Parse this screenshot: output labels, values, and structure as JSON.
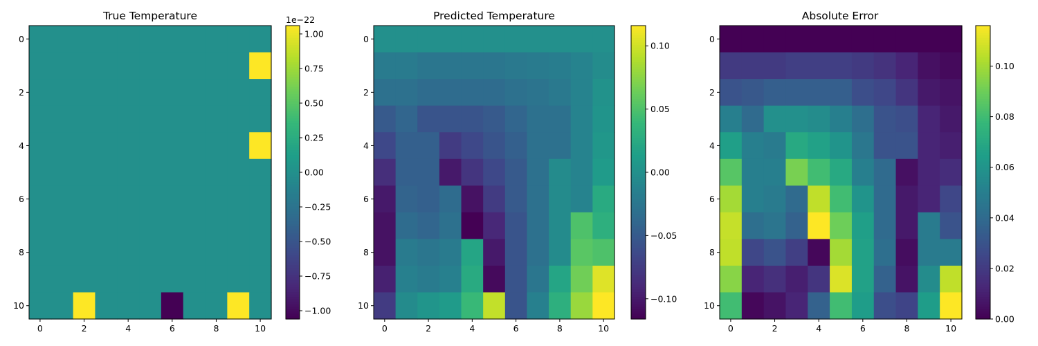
{
  "chart_data": [
    {
      "type": "heatmap",
      "title": "True Temperature",
      "colormap": "viridis",
      "x_ticks": [
        "0",
        "2",
        "4",
        "6",
        "8",
        "10"
      ],
      "y_ticks": [
        "0",
        "2",
        "4",
        "6",
        "8",
        "10"
      ],
      "colorbar": {
        "min": -1.06,
        "max": 1.06,
        "ticks": [
          "−1.00",
          "−0.75",
          "−0.50",
          "−0.25",
          "0.00",
          "0.25",
          "0.50",
          "0.75",
          "1.00"
        ],
        "tick_values": [
          -1.0,
          -0.75,
          -0.5,
          -0.25,
          0.0,
          0.25,
          0.5,
          0.75,
          1.0
        ],
        "offset_text": "1e−22"
      },
      "values": [
        [
          0,
          0,
          0,
          0,
          0,
          0,
          0,
          0,
          0,
          0,
          0
        ],
        [
          0,
          0,
          0,
          0,
          0,
          0,
          0,
          0,
          0,
          0,
          1.06
        ],
        [
          0,
          0,
          0,
          0,
          0,
          0,
          0,
          0,
          0,
          0,
          0
        ],
        [
          0,
          0,
          0,
          0,
          0,
          0,
          0,
          0,
          0,
          0,
          0
        ],
        [
          0,
          0,
          0,
          0,
          0,
          0,
          0,
          0,
          0,
          0,
          1.06
        ],
        [
          0,
          0,
          0,
          0,
          0,
          0,
          0,
          0,
          0,
          0,
          0
        ],
        [
          0,
          0,
          0,
          0,
          0,
          0,
          0,
          0,
          0,
          0,
          0
        ],
        [
          0,
          0,
          0,
          0,
          0,
          0,
          0,
          0,
          0,
          0,
          0
        ],
        [
          0,
          0,
          0,
          0,
          0,
          0,
          0,
          0,
          0,
          0,
          0
        ],
        [
          0,
          0,
          0,
          0,
          0,
          0,
          0,
          0,
          0,
          0,
          0
        ],
        [
          0,
          0,
          1.06,
          0,
          0,
          0,
          -1.06,
          0,
          0,
          1.06,
          0
        ]
      ]
    },
    {
      "type": "heatmap",
      "title": "Predicted Temperature",
      "colormap": "viridis",
      "x_ticks": [
        "0",
        "2",
        "4",
        "6",
        "8",
        "10"
      ],
      "y_ticks": [
        "0",
        "2",
        "4",
        "6",
        "8",
        "10"
      ],
      "colorbar": {
        "min": -0.116,
        "max": 0.116,
        "ticks": [
          "−0.10",
          "−0.05",
          "0.00",
          "0.05",
          "0.10"
        ],
        "tick_values": [
          -0.1,
          -0.05,
          0.0,
          0.05,
          0.1
        ],
        "offset_text": ""
      },
      "values": [
        [
          0,
          0,
          0,
          0,
          0,
          0,
          0,
          0,
          0,
          0,
          0
        ],
        [
          -0.02,
          -0.02,
          -0.025,
          -0.025,
          -0.025,
          -0.025,
          -0.022,
          -0.02,
          -0.018,
          -0.012,
          -0.004
        ],
        [
          -0.03,
          -0.03,
          -0.035,
          -0.035,
          -0.035,
          -0.035,
          -0.03,
          -0.027,
          -0.022,
          -0.012,
          0.002
        ],
        [
          -0.05,
          -0.04,
          -0.055,
          -0.055,
          -0.055,
          -0.05,
          -0.04,
          -0.03,
          -0.03,
          -0.012,
          0.004
        ],
        [
          -0.065,
          -0.045,
          -0.045,
          -0.075,
          -0.065,
          -0.055,
          -0.045,
          -0.03,
          -0.03,
          -0.012,
          0.006
        ],
        [
          -0.085,
          -0.045,
          -0.045,
          -0.1,
          -0.08,
          -0.065,
          -0.05,
          -0.03,
          -0.005,
          -0.012,
          0.01
        ],
        [
          -0.1,
          -0.042,
          -0.045,
          -0.035,
          -0.105,
          -0.075,
          -0.05,
          -0.03,
          -0.005,
          -0.012,
          0.025
        ],
        [
          -0.105,
          -0.035,
          -0.04,
          -0.03,
          -0.116,
          -0.09,
          -0.055,
          -0.03,
          -0.005,
          0.05,
          0.03
        ],
        [
          -0.105,
          -0.02,
          -0.025,
          -0.02,
          0.02,
          -0.1,
          -0.055,
          -0.03,
          -0.005,
          0.055,
          0.05
        ],
        [
          -0.095,
          -0.015,
          -0.02,
          -0.015,
          0.025,
          -0.11,
          -0.055,
          -0.025,
          0.02,
          0.065,
          0.105
        ],
        [
          -0.075,
          -0.005,
          0.005,
          0.01,
          0.04,
          0.095,
          -0.055,
          -0.015,
          0.03,
          0.08,
          0.116
        ]
      ]
    },
    {
      "type": "heatmap",
      "title": "Absolute Error",
      "colormap": "viridis",
      "x_ticks": [
        "0",
        "2",
        "4",
        "6",
        "8",
        "10"
      ],
      "y_ticks": [
        "0",
        "2",
        "4",
        "6",
        "8",
        "10"
      ],
      "colorbar": {
        "min": 0.0,
        "max": 0.116,
        "ticks": [
          "0.00",
          "0.02",
          "0.04",
          "0.06",
          "0.08",
          "0.10"
        ],
        "tick_values": [
          0.0,
          0.02,
          0.04,
          0.06,
          0.08,
          0.1
        ],
        "offset_text": ""
      },
      "values": [
        [
          0,
          0,
          0,
          0,
          0,
          0,
          0,
          0,
          0,
          0,
          0
        ],
        [
          0.02,
          0.02,
          0.02,
          0.022,
          0.022,
          0.022,
          0.02,
          0.017,
          0.012,
          0.005,
          0.003
        ],
        [
          0.03,
          0.032,
          0.035,
          0.035,
          0.035,
          0.035,
          0.028,
          0.025,
          0.018,
          0.008,
          0.006
        ],
        [
          0.05,
          0.04,
          0.058,
          0.058,
          0.056,
          0.05,
          0.042,
          0.03,
          0.028,
          0.012,
          0.008
        ],
        [
          0.065,
          0.05,
          0.048,
          0.07,
          0.066,
          0.06,
          0.046,
          0.03,
          0.03,
          0.012,
          0.01
        ],
        [
          0.085,
          0.05,
          0.05,
          0.092,
          0.08,
          0.07,
          0.05,
          0.04,
          0.005,
          0.012,
          0.015
        ],
        [
          0.1,
          0.05,
          0.048,
          0.04,
          0.105,
          0.08,
          0.06,
          0.04,
          0.008,
          0.012,
          0.025
        ],
        [
          0.106,
          0.042,
          0.045,
          0.036,
          0.116,
          0.09,
          0.065,
          0.04,
          0.008,
          0.048,
          0.03
        ],
        [
          0.105,
          0.025,
          0.03,
          0.022,
          0.002,
          0.1,
          0.066,
          0.042,
          0.004,
          0.048,
          0.048
        ],
        [
          0.095,
          0.012,
          0.016,
          0.01,
          0.018,
          0.11,
          0.066,
          0.036,
          0.006,
          0.056,
          0.105
        ],
        [
          0.08,
          0.002,
          0.006,
          0.012,
          0.036,
          0.08,
          0.064,
          0.028,
          0.024,
          0.064,
          0.116
        ]
      ]
    }
  ]
}
